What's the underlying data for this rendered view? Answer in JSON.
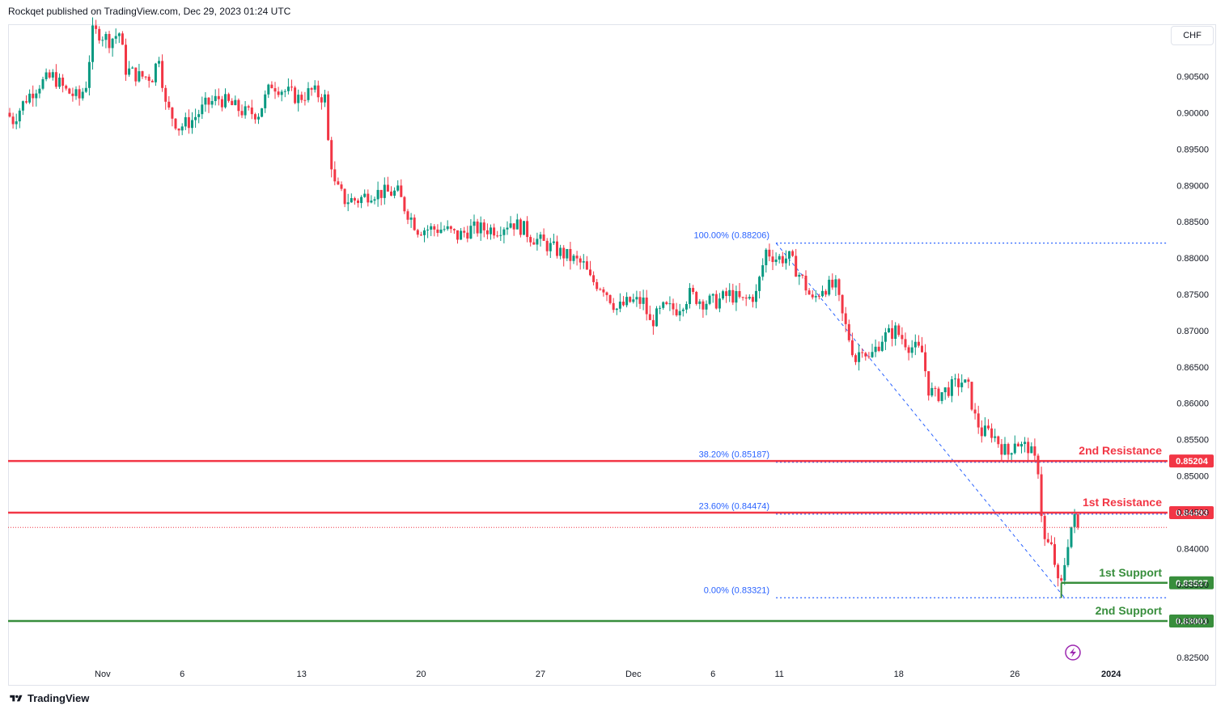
{
  "header": {
    "publisher": "Rockqet published on TradingView.com, Dec 29, 2023 01:24 UTC"
  },
  "currency_button": "CHF",
  "footer": {
    "brand": "TradingView"
  },
  "colors": {
    "bull": "#089981",
    "bear": "#f23645",
    "resistance": "#f23645",
    "support": "#388e3c",
    "fib": "#2962ff"
  },
  "chart_data": {
    "type": "candlestick",
    "symbol_currency": "CHF",
    "ylim": [
      0.8235,
      0.9135
    ],
    "y_ticks": [
      0.825,
      0.83,
      0.835,
      0.84,
      0.845,
      0.85,
      0.855,
      0.86,
      0.865,
      0.87,
      0.875,
      0.88,
      0.885,
      0.89,
      0.895,
      0.9,
      0.905
    ],
    "y_tick_labels": [
      "0.82500",
      "0.83000",
      "0.83500",
      "0.84000",
      "0.84500",
      "0.85000",
      "0.85500",
      "0.86000",
      "0.86500",
      "0.87000",
      "0.87500",
      "0.88000",
      "0.88500",
      "0.89000",
      "0.89500",
      "0.90000",
      "0.90500"
    ],
    "x_ticks": [
      {
        "label": "Nov",
        "i": 28
      },
      {
        "label": "6",
        "i": 52
      },
      {
        "label": "13",
        "i": 88
      },
      {
        "label": "20",
        "i": 124
      },
      {
        "label": "27",
        "i": 160
      },
      {
        "label": "Dec",
        "i": 188
      },
      {
        "label": "6",
        "i": 212
      },
      {
        "label": "11",
        "i": 232
      },
      {
        "label": "18",
        "i": 268
      },
      {
        "label": "26",
        "i": 303
      },
      {
        "label": "2024",
        "i": 332
      }
    ],
    "path_points": [
      [
        0,
        0.9
      ],
      [
        2,
        0.899
      ],
      [
        6,
        0.902
      ],
      [
        10,
        0.904
      ],
      [
        14,
        0.905
      ],
      [
        18,
        0.903
      ],
      [
        22,
        0.902
      ],
      [
        24,
        0.904
      ],
      [
        26,
        0.911
      ],
      [
        28,
        0.911
      ],
      [
        31,
        0.91
      ],
      [
        34,
        0.911
      ],
      [
        36,
        0.906
      ],
      [
        40,
        0.905
      ],
      [
        44,
        0.905
      ],
      [
        46,
        0.908
      ],
      [
        48,
        0.901
      ],
      [
        52,
        0.898
      ],
      [
        56,
        0.899
      ],
      [
        60,
        0.901
      ],
      [
        64,
        0.902
      ],
      [
        68,
        0.901
      ],
      [
        72,
        0.9
      ],
      [
        76,
        0.9
      ],
      [
        80,
        0.904
      ],
      [
        84,
        0.903
      ],
      [
        88,
        0.902
      ],
      [
        92,
        0.903
      ],
      [
        96,
        0.902
      ],
      [
        97,
        0.896
      ],
      [
        99,
        0.89
      ],
      [
        102,
        0.888
      ],
      [
        106,
        0.888
      ],
      [
        110,
        0.889
      ],
      [
        114,
        0.889
      ],
      [
        118,
        0.889
      ],
      [
        120,
        0.887
      ],
      [
        124,
        0.884
      ],
      [
        128,
        0.884
      ],
      [
        132,
        0.884
      ],
      [
        136,
        0.883
      ],
      [
        140,
        0.884
      ],
      [
        144,
        0.884
      ],
      [
        148,
        0.884
      ],
      [
        152,
        0.885
      ],
      [
        156,
        0.884
      ],
      [
        158,
        0.883
      ],
      [
        162,
        0.882
      ],
      [
        166,
        0.881
      ],
      [
        170,
        0.88
      ],
      [
        174,
        0.879
      ],
      [
        176,
        0.877
      ],
      [
        180,
        0.876
      ],
      [
        184,
        0.873
      ],
      [
        188,
        0.874
      ],
      [
        192,
        0.874
      ],
      [
        194,
        0.871
      ],
      [
        198,
        0.873
      ],
      [
        202,
        0.873
      ],
      [
        206,
        0.875
      ],
      [
        210,
        0.874
      ],
      [
        214,
        0.874
      ],
      [
        218,
        0.875
      ],
      [
        222,
        0.874
      ],
      [
        226,
        0.875
      ],
      [
        229,
        0.881
      ],
      [
        232,
        0.88
      ],
      [
        236,
        0.88
      ],
      [
        240,
        0.877
      ],
      [
        243,
        0.874
      ],
      [
        246,
        0.876
      ],
      [
        250,
        0.876
      ],
      [
        252,
        0.872
      ],
      [
        254,
        0.869
      ],
      [
        256,
        0.866
      ],
      [
        258,
        0.868
      ],
      [
        260,
        0.866
      ],
      [
        264,
        0.869
      ],
      [
        268,
        0.87
      ],
      [
        272,
        0.868
      ],
      [
        276,
        0.867
      ],
      [
        278,
        0.862
      ],
      [
        280,
        0.861
      ],
      [
        284,
        0.862
      ],
      [
        288,
        0.863
      ],
      [
        290,
        0.862
      ],
      [
        292,
        0.858
      ],
      [
        294,
        0.856
      ],
      [
        297,
        0.856
      ],
      [
        300,
        0.854
      ],
      [
        302,
        0.853
      ],
      [
        304,
        0.855
      ],
      [
        306,
        0.854
      ],
      [
        308,
        0.854
      ],
      [
        310,
        0.852
      ],
      [
        311,
        0.851
      ],
      [
        312,
        0.845
      ],
      [
        313,
        0.841
      ],
      [
        315,
        0.84
      ],
      [
        316,
        0.838
      ],
      [
        317,
        0.835
      ],
      [
        318,
        0.835
      ],
      [
        319,
        0.838
      ],
      [
        320,
        0.841
      ],
      [
        321,
        0.843
      ],
      [
        322,
        0.844
      ]
    ],
    "last_price": 0.8429,
    "horizontal_levels": [
      {
        "name": "2nd Resistance",
        "value": 0.85204,
        "label": "0.85204",
        "kind": "resistance"
      },
      {
        "name": "1st Resistance",
        "value": 0.84493,
        "label": "0.84493",
        "kind": "resistance"
      },
      {
        "name": "1st Support",
        "value": 0.83527,
        "label": "0.83527",
        "kind": "support"
      },
      {
        "name": "2nd Support",
        "value": 0.83001,
        "label": "0.83001",
        "kind": "support"
      }
    ],
    "fibonacci": {
      "levels": [
        {
          "label": "100.00% (0.88206)",
          "value": 0.88206
        },
        {
          "label": "38.20% (0.85187)",
          "value": 0.85187
        },
        {
          "label": "23.60% (0.84474)",
          "value": 0.84474
        },
        {
          "label": "0.00% (0.83321)",
          "value": 0.83321
        }
      ],
      "trend_from": {
        "i": 231,
        "value": 0.88206
      },
      "trend_to": {
        "i": 318,
        "value": 0.83321
      }
    }
  }
}
